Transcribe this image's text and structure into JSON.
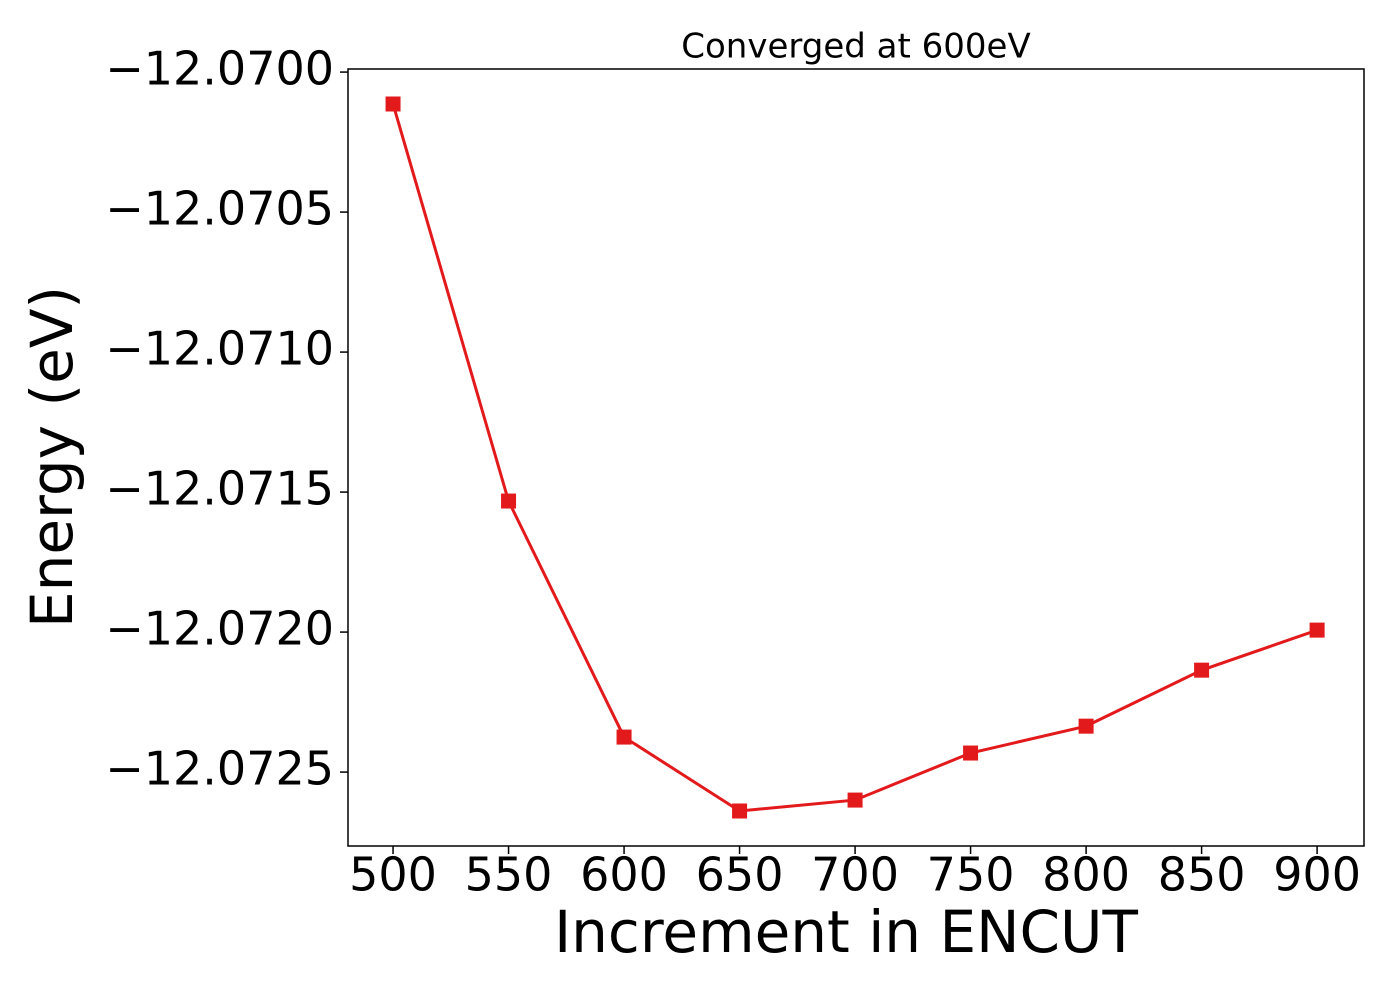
{
  "chart_data": {
    "type": "line",
    "title": "Converged at 600eV",
    "x_label": "Increment in ENCUT",
    "y_label": "Energy (eV)",
    "series": [
      {
        "color": "#e31a1c",
        "marker": "square",
        "x": [
          500,
          550,
          600,
          650,
          700,
          750,
          800,
          850,
          900
        ],
        "values": [
          -12.070114,
          -12.071532,
          -12.072375,
          -12.072639,
          -12.0726,
          -12.072432,
          -12.072336,
          -12.072136,
          -12.071993
        ]
      }
    ],
    "xlim": [
      480.5,
      920.3
    ],
    "ylim": [
      -12.072764,
      -12.069989
    ],
    "xticks": [
      500,
      550,
      600,
      650,
      700,
      750,
      800,
      850,
      900
    ],
    "yticks": [
      {
        "value": -12.07,
        "label": "−12.0700"
      },
      {
        "value": -12.0705,
        "label": "−12.0705"
      },
      {
        "value": -12.071,
        "label": "−12.0710"
      },
      {
        "value": -12.0715,
        "label": "−12.0715"
      },
      {
        "value": -12.072,
        "label": "−12.0720"
      },
      {
        "value": -12.0725,
        "label": "−12.0725"
      }
    ],
    "grid": false
  }
}
